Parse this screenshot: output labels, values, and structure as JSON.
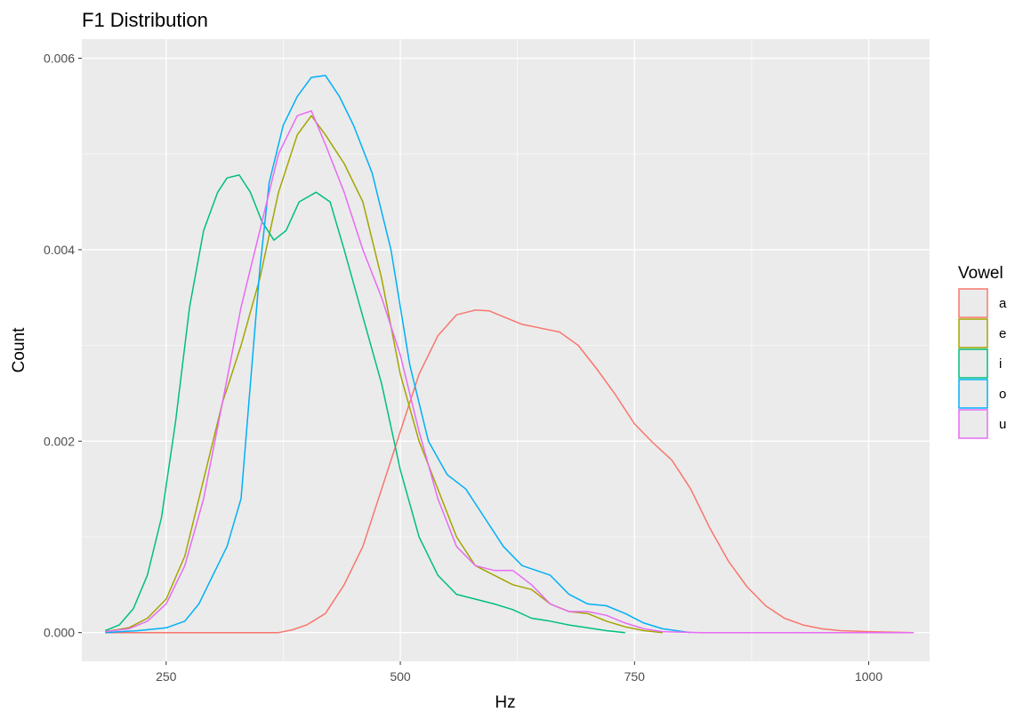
{
  "chart_data": {
    "type": "line",
    "title": "F1 Distribution",
    "xlabel": "Hz",
    "ylabel": "Count",
    "xlim": [
      160,
      1065
    ],
    "ylim": [
      -0.0003,
      0.0062
    ],
    "x_ticks": [
      250,
      500,
      750,
      1000
    ],
    "y_ticks": [
      0.0,
      0.002,
      0.004,
      0.006
    ],
    "y_tick_labels": [
      "0.000",
      "0.002",
      "0.004",
      "0.006"
    ],
    "grid": true,
    "legend": {
      "title": "Vowel",
      "position": "right"
    },
    "series": [
      {
        "name": "a",
        "color": "#F8766D",
        "points": [
          [
            185,
            0
          ],
          [
            250,
            0
          ],
          [
            300,
            0
          ],
          [
            370,
            0
          ],
          [
            385,
            3e-05
          ],
          [
            400,
            8e-05
          ],
          [
            420,
            0.0002
          ],
          [
            440,
            0.0005
          ],
          [
            460,
            0.0009
          ],
          [
            480,
            0.0015
          ],
          [
            500,
            0.0021
          ],
          [
            520,
            0.0027
          ],
          [
            540,
            0.0031
          ],
          [
            560,
            0.00332
          ],
          [
            580,
            0.00337
          ],
          [
            595,
            0.00336
          ],
          [
            610,
            0.0033
          ],
          [
            630,
            0.00322
          ],
          [
            650,
            0.00318
          ],
          [
            670,
            0.00314
          ],
          [
            690,
            0.003
          ],
          [
            710,
            0.00275
          ],
          [
            730,
            0.00248
          ],
          [
            750,
            0.00218
          ],
          [
            770,
            0.00198
          ],
          [
            790,
            0.0018
          ],
          [
            810,
            0.0015
          ],
          [
            830,
            0.0011
          ],
          [
            850,
            0.00075
          ],
          [
            870,
            0.00048
          ],
          [
            890,
            0.00028
          ],
          [
            910,
            0.00015
          ],
          [
            930,
            8e-05
          ],
          [
            950,
            4e-05
          ],
          [
            970,
            2e-05
          ],
          [
            1000,
            1e-05
          ],
          [
            1048,
            0
          ]
        ]
      },
      {
        "name": "e",
        "color": "#A3A500",
        "points": [
          [
            185,
            1e-05
          ],
          [
            210,
            5e-05
          ],
          [
            230,
            0.00015
          ],
          [
            250,
            0.00035
          ],
          [
            270,
            0.0008
          ],
          [
            290,
            0.0016
          ],
          [
            310,
            0.0024
          ],
          [
            330,
            0.003
          ],
          [
            350,
            0.0037
          ],
          [
            370,
            0.0046
          ],
          [
            390,
            0.0052
          ],
          [
            405,
            0.0054
          ],
          [
            420,
            0.0052
          ],
          [
            440,
            0.0049
          ],
          [
            460,
            0.0045
          ],
          [
            480,
            0.0037
          ],
          [
            500,
            0.0027
          ],
          [
            520,
            0.002
          ],
          [
            540,
            0.0015
          ],
          [
            560,
            0.001
          ],
          [
            580,
            0.0007
          ],
          [
            600,
            0.0006
          ],
          [
            620,
            0.0005
          ],
          [
            640,
            0.00045
          ],
          [
            660,
            0.0003
          ],
          [
            680,
            0.00022
          ],
          [
            700,
            0.0002
          ],
          [
            720,
            0.00012
          ],
          [
            740,
            6e-05
          ],
          [
            760,
            2e-05
          ],
          [
            780,
            0
          ]
        ]
      },
      {
        "name": "i",
        "color": "#00BF7D",
        "points": [
          [
            185,
            2e-05
          ],
          [
            200,
            8e-05
          ],
          [
            215,
            0.00025
          ],
          [
            230,
            0.0006
          ],
          [
            245,
            0.0012
          ],
          [
            260,
            0.0022
          ],
          [
            275,
            0.0034
          ],
          [
            290,
            0.0042
          ],
          [
            305,
            0.0046
          ],
          [
            315,
            0.00475
          ],
          [
            328,
            0.00478
          ],
          [
            340,
            0.0046
          ],
          [
            352,
            0.0043
          ],
          [
            365,
            0.0041
          ],
          [
            378,
            0.0042
          ],
          [
            392,
            0.0045
          ],
          [
            410,
            0.0046
          ],
          [
            425,
            0.0045
          ],
          [
            440,
            0.004
          ],
          [
            460,
            0.0033
          ],
          [
            480,
            0.0026
          ],
          [
            500,
            0.0017
          ],
          [
            520,
            0.001
          ],
          [
            540,
            0.0006
          ],
          [
            560,
            0.0004
          ],
          [
            580,
            0.00035
          ],
          [
            600,
            0.0003
          ],
          [
            620,
            0.00024
          ],
          [
            640,
            0.00015
          ],
          [
            660,
            0.00012
          ],
          [
            680,
            8e-05
          ],
          [
            700,
            5e-05
          ],
          [
            720,
            2e-05
          ],
          [
            740,
            0
          ]
        ]
      },
      {
        "name": "o",
        "color": "#00B0F6",
        "points": [
          [
            185,
            0
          ],
          [
            220,
            2e-05
          ],
          [
            250,
            5e-05
          ],
          [
            270,
            0.00012
          ],
          [
            285,
            0.0003
          ],
          [
            300,
            0.0006
          ],
          [
            315,
            0.0009
          ],
          [
            330,
            0.0014
          ],
          [
            340,
            0.0026
          ],
          [
            350,
            0.0038
          ],
          [
            360,
            0.0047
          ],
          [
            375,
            0.0053
          ],
          [
            390,
            0.0056
          ],
          [
            405,
            0.0058
          ],
          [
            420,
            0.00582
          ],
          [
            435,
            0.0056
          ],
          [
            450,
            0.0053
          ],
          [
            470,
            0.0048
          ],
          [
            490,
            0.004
          ],
          [
            510,
            0.0028
          ],
          [
            530,
            0.002
          ],
          [
            550,
            0.00165
          ],
          [
            570,
            0.0015
          ],
          [
            590,
            0.0012
          ],
          [
            610,
            0.0009
          ],
          [
            630,
            0.0007
          ],
          [
            660,
            0.0006
          ],
          [
            680,
            0.0004
          ],
          [
            700,
            0.0003
          ],
          [
            720,
            0.00028
          ],
          [
            740,
            0.0002
          ],
          [
            760,
            0.0001
          ],
          [
            780,
            4e-05
          ],
          [
            810,
            0
          ]
        ]
      },
      {
        "name": "u",
        "color": "#E76BF3",
        "points": [
          [
            185,
            1e-05
          ],
          [
            210,
            4e-05
          ],
          [
            230,
            0.00012
          ],
          [
            250,
            0.0003
          ],
          [
            270,
            0.0007
          ],
          [
            290,
            0.0014
          ],
          [
            310,
            0.0024
          ],
          [
            330,
            0.0034
          ],
          [
            350,
            0.0042
          ],
          [
            370,
            0.005
          ],
          [
            390,
            0.0054
          ],
          [
            405,
            0.00545
          ],
          [
            420,
            0.0051
          ],
          [
            440,
            0.0046
          ],
          [
            460,
            0.004
          ],
          [
            480,
            0.0035
          ],
          [
            500,
            0.0029
          ],
          [
            520,
            0.0021
          ],
          [
            540,
            0.0014
          ],
          [
            560,
            0.0009
          ],
          [
            580,
            0.0007
          ],
          [
            600,
            0.00065
          ],
          [
            620,
            0.00065
          ],
          [
            640,
            0.0005
          ],
          [
            660,
            0.0003
          ],
          [
            680,
            0.00022
          ],
          [
            700,
            0.00022
          ],
          [
            720,
            0.00018
          ],
          [
            740,
            0.0001
          ],
          [
            760,
            4e-05
          ],
          [
            780,
            1e-05
          ],
          [
            820,
            0
          ],
          [
            900,
            0
          ],
          [
            1000,
            0
          ],
          [
            1048,
            0
          ]
        ]
      }
    ]
  }
}
